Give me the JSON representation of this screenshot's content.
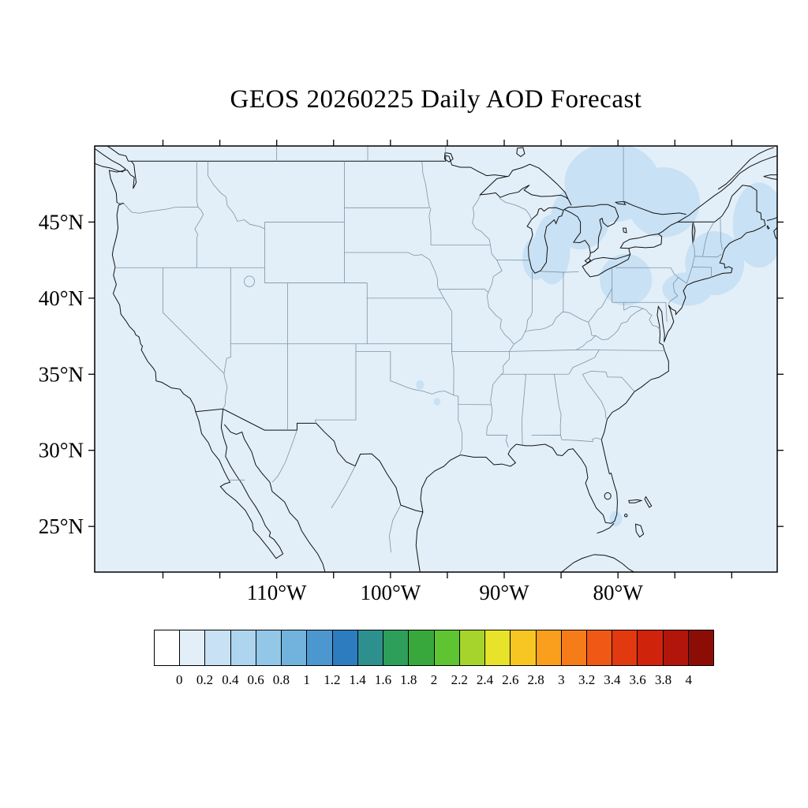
{
  "title": "GEOS 20260225 Daily AOD Forecast",
  "map": {
    "extent": {
      "lon_min": -126,
      "lon_max": -66,
      "lat_min": 22,
      "lat_max": 50
    },
    "lon_ticks": [
      -120,
      -115,
      -110,
      -105,
      -100,
      -95,
      -90,
      -85,
      -80,
      -75,
      -70
    ],
    "lon_tick_labels": [
      {
        "value": -110,
        "label": "110°W"
      },
      {
        "value": -100,
        "label": "100°W"
      },
      {
        "value": -90,
        "label": "90°W"
      },
      {
        "value": -80,
        "label": "80°W"
      }
    ],
    "lat_ticks": [
      45,
      40,
      35,
      30,
      25
    ],
    "lat_tick_labels": [
      {
        "value": 45,
        "label": "45°N"
      },
      {
        "value": 40,
        "label": "40°N"
      },
      {
        "value": 35,
        "label": "35°N"
      },
      {
        "value": 30,
        "label": "30°N"
      },
      {
        "value": 25,
        "label": "25°N"
      }
    ],
    "background_color": "#e2eff9",
    "aod_patch_color": "#c8e1f4"
  },
  "colorbar": {
    "labels": [
      "0",
      "0.2",
      "0.4",
      "0.6",
      "0.8",
      "1",
      "1.2",
      "1.4",
      "1.6",
      "1.8",
      "2",
      "2.2",
      "2.4",
      "2.6",
      "2.8",
      "3",
      "3.2",
      "3.4",
      "3.6",
      "3.8",
      "4"
    ],
    "colors": [
      "#ffffff",
      "#e2eff9",
      "#c8e1f4",
      "#aed5ef",
      "#93c7e8",
      "#72b3de",
      "#4d97d0",
      "#2e7cc0",
      "#2e8f8f",
      "#2e9e5b",
      "#38a83c",
      "#5fc432",
      "#a6d42c",
      "#e6e32a",
      "#f7c623",
      "#f99f1d",
      "#f67c19",
      "#ef5915",
      "#e23a10",
      "#cf230c",
      "#b2150a",
      "#8c0d06"
    ]
  },
  "chart_data": {
    "type": "heatmap",
    "title": "GEOS 20260225 Daily AOD Forecast",
    "colorbar_levels": [
      0,
      0.2,
      0.4,
      0.6,
      0.8,
      1,
      1.2,
      1.4,
      1.6,
      1.8,
      2,
      2.2,
      2.4,
      2.6,
      2.8,
      3,
      3.2,
      3.4,
      3.6,
      3.8,
      4
    ],
    "field_summary": "AOD mostly 0-0.2 over the domain; patches of 0.2-0.4 over the Great Lakes, Ontario/Quebec, Pennsylvania-New York, New England coast and near south Florida",
    "x_range_lon": [
      -126,
      -66
    ],
    "y_range_lat": [
      22,
      50
    ]
  }
}
